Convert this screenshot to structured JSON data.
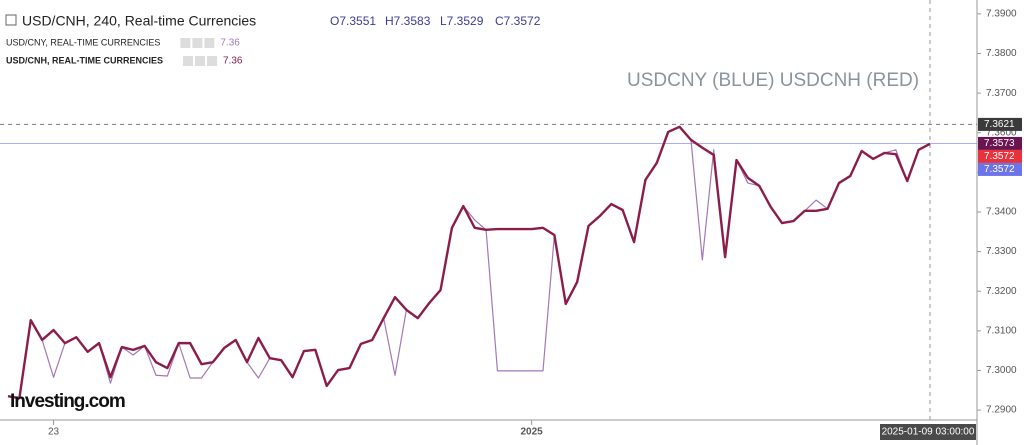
{
  "chart_data": {
    "type": "line",
    "title": "USD/CNH, 240, Real-time Currencies",
    "ohlc": [
      "O7.3551",
      "H7.3583",
      "L7.3529",
      "C7.3572"
    ],
    "annotation": "USDCNY (BLUE) USDCNH (RED)",
    "watermark": "Investing.com",
    "crosshair_date": "2025-01-09 03:00:00",
    "categories": [
      null,
      null,
      null,
      null,
      "23",
      null,
      null,
      null,
      null,
      null,
      null,
      null,
      null,
      null,
      null,
      null,
      null,
      null,
      null,
      null,
      null,
      null,
      null,
      null,
      null,
      null,
      null,
      null,
      null,
      null,
      null,
      null,
      null,
      null,
      null,
      null,
      null,
      null,
      null,
      null,
      null,
      null,
      null,
      null,
      null,
      null,
      "2025",
      null,
      null,
      null,
      null,
      null,
      null,
      null,
      null,
      null,
      null,
      null,
      null,
      null,
      null,
      null,
      null,
      null,
      null,
      null,
      null,
      null,
      null,
      null,
      null,
      null,
      null,
      null,
      null,
      null,
      null,
      null,
      null,
      null,
      null,
      null
    ],
    "series": [
      {
        "name": "USD/CNY, REAL-TIME CURRENCIES",
        "color": "#a477b8",
        "width": 1.2,
        "legend_value": 7.36,
        "values": [
          7.2935,
          7.293,
          7.3127,
          7.3077,
          7.2983,
          7.3069,
          7.3084,
          7.3047,
          7.3069,
          7.2968,
          7.3059,
          7.3039,
          7.3062,
          7.2988,
          7.2986,
          7.3069,
          7.2981,
          7.2981,
          7.3021,
          7.3057,
          7.3077,
          7.3021,
          7.2981,
          7.3031,
          7.3026,
          7.2983,
          7.3049,
          7.3052,
          7.2961,
          7.3001,
          7.3006,
          7.3067,
          7.3077,
          7.3132,
          7.2988,
          7.3153,
          7.3132,
          7.317,
          7.3203,
          7.336,
          7.3415,
          7.338,
          7.3355,
          7.2999,
          7.2999,
          7.2999,
          7.2999,
          7.2999,
          7.3342,
          7.3168,
          7.3223,
          7.3365,
          7.339,
          7.342,
          7.3405,
          7.3324,
          7.3481,
          7.3524,
          7.3602,
          7.3615,
          7.3582,
          7.3279,
          7.3557,
          7.3286,
          7.3531,
          7.3473,
          7.3466,
          7.3413,
          7.3372,
          7.3377,
          7.3403,
          7.343,
          7.3408,
          7.3473,
          7.3491,
          7.3554,
          7.3534,
          7.3549,
          7.3557,
          7.3478,
          7.3557,
          7.3572
        ]
      },
      {
        "name": "USD/CNH, REAL-TIME CURRENCIES",
        "color": "#8c1d4b",
        "width": 2.4,
        "legend_value": 7.36,
        "values": [
          7.2935,
          7.293,
          7.3127,
          7.3077,
          7.3102,
          7.3069,
          7.3084,
          7.3047,
          7.3069,
          7.2983,
          7.3059,
          7.3052,
          7.3062,
          7.3021,
          7.3006,
          7.3069,
          7.3069,
          7.3016,
          7.3021,
          7.3057,
          7.3077,
          7.3021,
          7.3082,
          7.3031,
          7.3026,
          7.2983,
          7.3049,
          7.3052,
          7.2961,
          7.3001,
          7.3006,
          7.3067,
          7.3077,
          7.3132,
          7.3185,
          7.3153,
          7.3132,
          7.317,
          7.3203,
          7.336,
          7.3415,
          7.336,
          7.3355,
          7.3357,
          7.3357,
          7.3357,
          7.3357,
          7.336,
          7.3342,
          7.3168,
          7.3223,
          7.3365,
          7.339,
          7.342,
          7.3405,
          7.3324,
          7.3481,
          7.3524,
          7.3602,
          7.3615,
          7.3582,
          7.3562,
          7.3544,
          7.3286,
          7.3531,
          7.3486,
          7.3466,
          7.3413,
          7.3372,
          7.3377,
          7.3403,
          7.3403,
          7.3408,
          7.3473,
          7.3491,
          7.3554,
          7.3534,
          7.3549,
          7.3546,
          7.3478,
          7.3557,
          7.3572
        ]
      }
    ],
    "price_labels": [
      {
        "value": 7.3621,
        "color": "#3a3a3a"
      },
      {
        "value": 7.3573,
        "color": "#6b1450"
      },
      {
        "value": 7.3572,
        "color": "#e8323c"
      },
      {
        "value": 7.3572,
        "color": "#6d73e8"
      }
    ],
    "ylim": [
      7.2875,
      7.3935
    ],
    "yticks": [
      {
        "value": 7.29,
        "label": "7.2900"
      },
      {
        "value": 7.3,
        "label": "7.3000"
      },
      {
        "value": 7.31,
        "label": "7.3100"
      },
      {
        "value": 7.32,
        "label": "7.3200"
      },
      {
        "value": 7.33,
        "label": "7.3300"
      },
      {
        "value": 7.34,
        "label": "7.3400"
      },
      {
        "value": 7.35,
        "label": "7.3500"
      },
      {
        "value": 7.36,
        "label": "7.3600"
      },
      {
        "value": 7.37,
        "label": "7.3700"
      },
      {
        "value": 7.38,
        "label": "7.3800"
      },
      {
        "value": 7.39,
        "label": "7.3900"
      }
    ],
    "grid": false
  }
}
